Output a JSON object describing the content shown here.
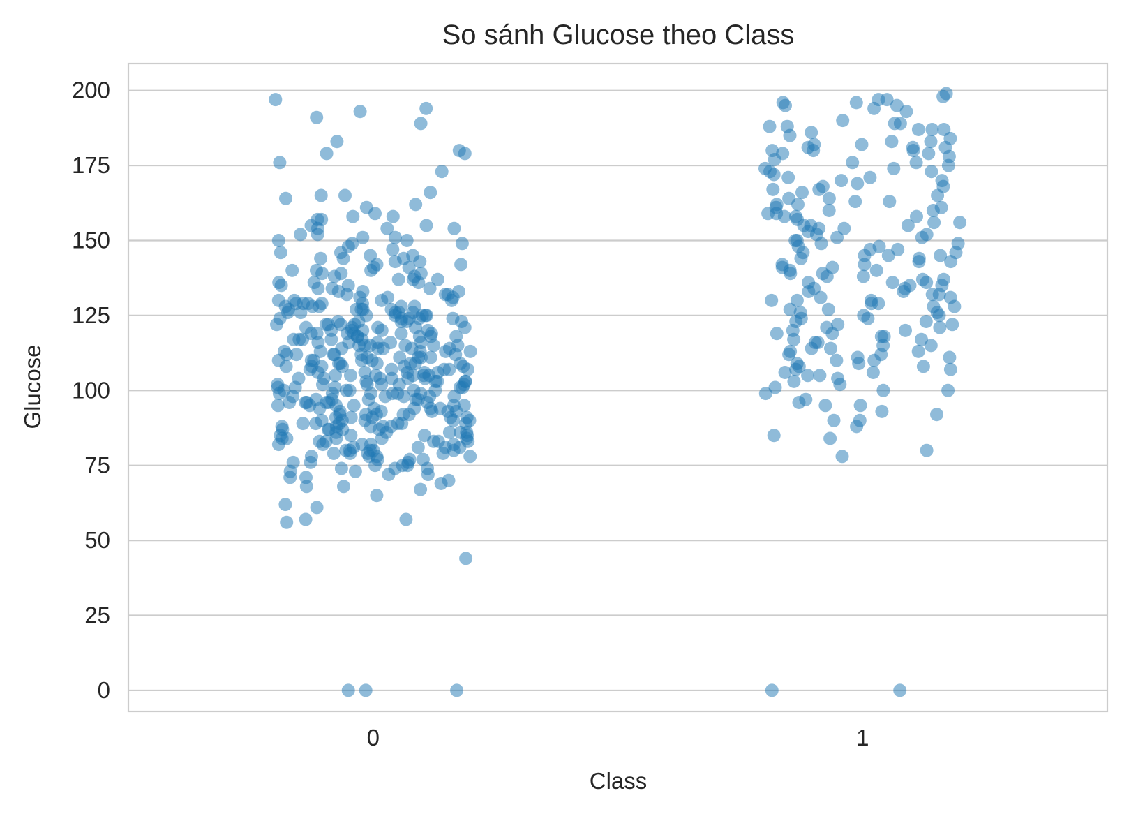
{
  "chart_data": {
    "type": "scatter",
    "subtype": "strip",
    "title": "So sánh Glucose theo Class",
    "xlabel": "Class",
    "ylabel": "Glucose",
    "categories": [
      "0",
      "1"
    ],
    "ylim": [
      -7,
      209
    ],
    "yticks": [
      0,
      25,
      50,
      75,
      100,
      125,
      150,
      175,
      200
    ],
    "grid": "horizontal",
    "legend": "none",
    "colors": {
      "point": "#1f77b4",
      "grid": "#cccccc",
      "text": "#262626",
      "frame": "#cccccc"
    },
    "series": [
      {
        "category": "0",
        "values": [
          197,
          194,
          193,
          191,
          189,
          183,
          180,
          179,
          179,
          176,
          173,
          166,
          165,
          165,
          164,
          162,
          161,
          159,
          158,
          158,
          157,
          157,
          155,
          155,
          154,
          154,
          154,
          152,
          152,
          151,
          151,
          150,
          150,
          149,
          149,
          148,
          147,
          146,
          146,
          145,
          145,
          144,
          144,
          144,
          143,
          143,
          142,
          142,
          141,
          141,
          140,
          140,
          140,
          139,
          139,
          139,
          138,
          138,
          137,
          137,
          137,
          136,
          136,
          136,
          135,
          135,
          134,
          134,
          134,
          133,
          133,
          133,
          132,
          132,
          132,
          131,
          131,
          131,
          130,
          130,
          130,
          130,
          129,
          129,
          129,
          129,
          128,
          128,
          128,
          128,
          127,
          127,
          127,
          127,
          126,
          126,
          126,
          126,
          125,
          125,
          125,
          125,
          124,
          124,
          124,
          124,
          123,
          123,
          123,
          123,
          122,
          122,
          122,
          122,
          121,
          121,
          121,
          121,
          120,
          120,
          120,
          120,
          119,
          119,
          119,
          119,
          118,
          118,
          118,
          118,
          117,
          117,
          117,
          117,
          116,
          116,
          116,
          116,
          115,
          115,
          115,
          115,
          114,
          114,
          114,
          114,
          113,
          113,
          113,
          113,
          112,
          112,
          112,
          112,
          111,
          111,
          111,
          111,
          110,
          110,
          110,
          110,
          109,
          109,
          109,
          109,
          108,
          108,
          108,
          108,
          107,
          107,
          107,
          107,
          106,
          106,
          106,
          106,
          105,
          105,
          105,
          105,
          104,
          104,
          104,
          104,
          103,
          103,
          103,
          103,
          102,
          102,
          102,
          102,
          101,
          101,
          101,
          101,
          100,
          100,
          100,
          100,
          99,
          99,
          99,
          99,
          98,
          98,
          98,
          98,
          97,
          97,
          97,
          97,
          96,
          96,
          96,
          96,
          95,
          95,
          95,
          95,
          94,
          94,
          94,
          94,
          93,
          93,
          93,
          93,
          92,
          92,
          92,
          92,
          91,
          91,
          91,
          91,
          90,
          90,
          90,
          90,
          89,
          89,
          89,
          89,
          88,
          88,
          88,
          88,
          87,
          87,
          87,
          87,
          86,
          86,
          86,
          86,
          85,
          85,
          85,
          85,
          84,
          84,
          84,
          84,
          83,
          83,
          83,
          83,
          82,
          82,
          82,
          82,
          81,
          81,
          81,
          81,
          80,
          80,
          80,
          80,
          79,
          79,
          79,
          79,
          78,
          78,
          78,
          78,
          77,
          77,
          77,
          76,
          76,
          76,
          75,
          75,
          75,
          74,
          74,
          74,
          73,
          73,
          72,
          72,
          71,
          71,
          70,
          69,
          68,
          68,
          67,
          65,
          62,
          61,
          57,
          57,
          56,
          44,
          0,
          0,
          0,
          128,
          126,
          124,
          122,
          120,
          118,
          116,
          114,
          112,
          110,
          108,
          106,
          104,
          102,
          100,
          98,
          96,
          94,
          92,
          90,
          88,
          86,
          84,
          82,
          80,
          127,
          123,
          119,
          115,
          111,
          107,
          103,
          99,
          95,
          91,
          87,
          83,
          121,
          117,
          113,
          109,
          105,
          101,
          97,
          93,
          89,
          125,
          115,
          105,
          95,
          129,
          109,
          99,
          89,
          119,
          108,
          102,
          96,
          112,
          104
        ]
      },
      {
        "category": "1",
        "values": [
          199,
          198,
          197,
          197,
          196,
          196,
          195,
          195,
          194,
          193,
          190,
          189,
          189,
          188,
          188,
          187,
          187,
          187,
          186,
          185,
          184,
          183,
          183,
          182,
          182,
          181,
          181,
          181,
          180,
          180,
          180,
          179,
          179,
          178,
          177,
          176,
          176,
          175,
          174,
          174,
          173,
          173,
          172,
          171,
          171,
          170,
          170,
          169,
          168,
          168,
          167,
          167,
          166,
          165,
          164,
          164,
          163,
          163,
          162,
          162,
          161,
          161,
          160,
          160,
          159,
          159,
          158,
          158,
          158,
          157,
          156,
          156,
          155,
          155,
          155,
          154,
          154,
          153,
          152,
          152,
          151,
          151,
          150,
          150,
          149,
          149,
          148,
          148,
          147,
          147,
          146,
          146,
          145,
          145,
          145,
          144,
          144,
          143,
          143,
          142,
          142,
          141,
          141,
          140,
          140,
          139,
          139,
          138,
          138,
          137,
          137,
          136,
          136,
          136,
          135,
          135,
          134,
          134,
          133,
          133,
          132,
          132,
          131,
          131,
          130,
          130,
          130,
          129,
          129,
          128,
          128,
          127,
          127,
          126,
          126,
          125,
          125,
          124,
          124,
          123,
          123,
          122,
          122,
          121,
          121,
          120,
          120,
          119,
          119,
          118,
          118,
          117,
          117,
          116,
          116,
          115,
          115,
          114,
          114,
          113,
          113,
          112,
          112,
          111,
          111,
          110,
          110,
          109,
          109,
          108,
          108,
          107,
          107,
          106,
          106,
          105,
          105,
          104,
          103,
          102,
          101,
          100,
          100,
          99,
          97,
          96,
          95,
          95,
          93,
          92,
          90,
          90,
          88,
          85,
          84,
          80,
          78,
          0,
          0
        ]
      }
    ]
  }
}
